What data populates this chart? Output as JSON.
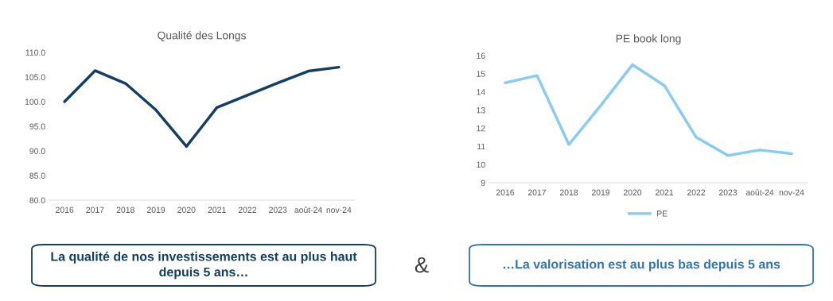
{
  "chart_data": [
    {
      "type": "line",
      "title": "Qualité des Longs",
      "categories": [
        "2016",
        "2017",
        "2018",
        "2019",
        "2020",
        "2021",
        "2022",
        "2023",
        "août-24",
        "nov-24"
      ],
      "series": [
        {
          "color": "#123f63",
          "values": [
            100.0,
            106.3,
            103.7,
            98.3,
            90.9,
            98.8,
            101.3,
            103.8,
            106.2,
            107.0
          ]
        }
      ],
      "ylim": [
        80,
        110
      ],
      "yticks": [
        {
          "value": 80,
          "label": "80.0"
        },
        {
          "value": 85,
          "label": "85.0"
        },
        {
          "value": 90,
          "label": "90.0"
        },
        {
          "value": 95,
          "label": "95.0"
        },
        {
          "value": 100,
          "label": "100.0"
        },
        {
          "value": 105,
          "label": "105.0"
        },
        {
          "value": 110,
          "label": "110.0"
        }
      ],
      "grid": false,
      "legend": false,
      "annotations": [
        "La qualité de nos investissements est au plus haut depuis 5 ans…",
        "&"
      ]
    },
    {
      "type": "line",
      "title": "PE book long",
      "categories": [
        "2016",
        "2017",
        "2018",
        "2019",
        "2020",
        "2021",
        "2022",
        "2023",
        "août-24",
        "nov-24"
      ],
      "series": [
        {
          "name": "PE",
          "color": "#88cbf5",
          "values": [
            14.5,
            14.9,
            11.1,
            13.25,
            15.5,
            14.35,
            11.5,
            10.5,
            10.8,
            10.6
          ]
        }
      ],
      "ylim": [
        9,
        16
      ],
      "yticks": [
        9,
        10,
        11,
        12,
        13,
        14,
        15,
        16
      ],
      "grid": false,
      "legend": "bottom",
      "annotations": [
        "…La valorisation est au plus bas depuis 5 ans"
      ]
    }
  ]
}
